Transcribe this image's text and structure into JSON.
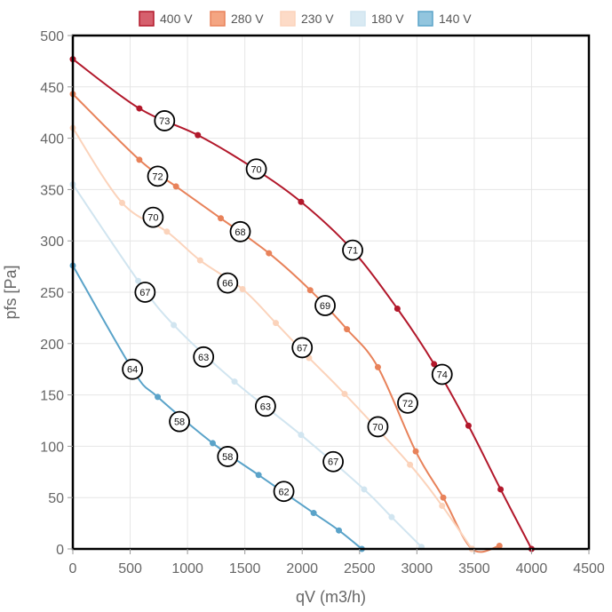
{
  "chart_data": {
    "type": "line",
    "title": "",
    "xlabel": "qV (m3/h)",
    "ylabel": "pfs [Pa]",
    "xlim": [
      0,
      4500
    ],
    "ylim": [
      0,
      500
    ],
    "x_ticks": [
      "0",
      "500",
      "1000",
      "1500",
      "2000",
      "2500",
      "3000",
      "3500",
      "4000",
      "4500"
    ],
    "y_ticks": [
      "0",
      "50",
      "100",
      "150",
      "200",
      "250",
      "300",
      "350",
      "400",
      "450",
      "500"
    ],
    "grid": true,
    "legend_position": "top",
    "series": [
      {
        "name": "400 V",
        "color": "#b2182b",
        "fill": "#d6606d",
        "points": [
          [
            0,
            477
          ],
          [
            580,
            429
          ],
          [
            1090,
            403
          ],
          [
            1560,
            372
          ],
          [
            1990,
            338
          ],
          [
            2430,
            292
          ],
          [
            2830,
            234
          ],
          [
            3150,
            180
          ],
          [
            3450,
            120
          ],
          [
            3730,
            58
          ],
          [
            4000,
            0
          ]
        ]
      },
      {
        "name": "280 V",
        "color": "#e8825a",
        "fill": "#f4a582",
        "points": [
          [
            0,
            443
          ],
          [
            580,
            379
          ],
          [
            900,
            353
          ],
          [
            1290,
            322
          ],
          [
            1710,
            288
          ],
          [
            2070,
            252
          ],
          [
            2390,
            214
          ],
          [
            2660,
            177
          ],
          [
            2990,
            95
          ],
          [
            3230,
            50
          ],
          [
            3480,
            0
          ],
          [
            3720,
            3
          ]
        ]
      },
      {
        "name": "230 V",
        "color": "#fbd3bb",
        "fill": "#fddbc7",
        "points": [
          [
            0,
            410
          ],
          [
            430,
            337
          ],
          [
            820,
            309
          ],
          [
            1110,
            281
          ],
          [
            1480,
            253
          ],
          [
            1770,
            220
          ],
          [
            2060,
            186
          ],
          [
            2370,
            151
          ],
          [
            2940,
            82
          ],
          [
            3220,
            42
          ],
          [
            3480,
            0
          ]
        ]
      },
      {
        "name": "180 V",
        "color": "#d1e5f0",
        "fill": "#d9eaf3",
        "points": [
          [
            0,
            355
          ],
          [
            570,
            261
          ],
          [
            880,
            218
          ],
          [
            1410,
            163
          ],
          [
            1990,
            111
          ],
          [
            2540,
            58
          ],
          [
            2780,
            31
          ],
          [
            3040,
            2
          ]
        ]
      },
      {
        "name": "140 V",
        "color": "#5aa3c9",
        "fill": "#92c5de",
        "points": [
          [
            0,
            276
          ],
          [
            530,
            173
          ],
          [
            740,
            148
          ],
          [
            1220,
            103
          ],
          [
            1620,
            72
          ],
          [
            2100,
            35
          ],
          [
            2320,
            18
          ],
          [
            2520,
            0
          ]
        ]
      }
    ],
    "annotations": [
      {
        "text": "73",
        "x": 800,
        "y": 417
      },
      {
        "text": "70",
        "x": 1600,
        "y": 370
      },
      {
        "text": "71",
        "x": 2440,
        "y": 291
      },
      {
        "text": "74",
        "x": 3220,
        "y": 170
      },
      {
        "text": "72",
        "x": 740,
        "y": 363
      },
      {
        "text": "68",
        "x": 1460,
        "y": 309
      },
      {
        "text": "69",
        "x": 2200,
        "y": 237
      },
      {
        "text": "72",
        "x": 2920,
        "y": 142
      },
      {
        "text": "70",
        "x": 700,
        "y": 323
      },
      {
        "text": "66",
        "x": 1350,
        "y": 259
      },
      {
        "text": "67",
        "x": 2000,
        "y": 196
      },
      {
        "text": "70",
        "x": 2660,
        "y": 119
      },
      {
        "text": "67",
        "x": 630,
        "y": 250
      },
      {
        "text": "63",
        "x": 1140,
        "y": 187
      },
      {
        "text": "63",
        "x": 1680,
        "y": 139
      },
      {
        "text": "67",
        "x": 2270,
        "y": 85
      },
      {
        "text": "64",
        "x": 520,
        "y": 175
      },
      {
        "text": "58",
        "x": 930,
        "y": 124
      },
      {
        "text": "58",
        "x": 1350,
        "y": 90
      },
      {
        "text": "62",
        "x": 1840,
        "y": 56
      }
    ]
  }
}
